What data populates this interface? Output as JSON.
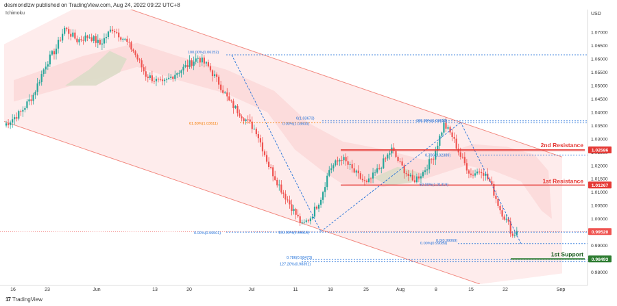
{
  "header": {
    "published_text": "desmondlzw published on TradingView.com, Aug 24, 2022 09:22 UTC+8",
    "indicator_label": "Ichimoku",
    "currency": "USD",
    "brand": "TradingView"
  },
  "colors": {
    "bull": "#26a69a",
    "bear": "#ef5350",
    "resistance": "#e53935",
    "support": "#2e7d32",
    "fib": "#1e6fd9",
    "fib_orange": "#f57c00",
    "channel_fill": "#fde6e6",
    "cloud_red": "#f9d0d0",
    "cloud_green": "#dcdcc8"
  },
  "chart_data": {
    "type": "candlestick",
    "title": "",
    "xlabel": "",
    "ylabel": "USD",
    "ylim": [
      0.9755,
      1.0785
    ],
    "y_ticks": [
      "1.07000",
      "1.06500",
      "1.06000",
      "1.05500",
      "1.05000",
      "1.04500",
      "1.04000",
      "1.03500",
      "1.03000",
      "1.02500",
      "1.02000",
      "1.01500",
      "1.01000",
      "1.00500",
      "1.00000",
      "0.99500",
      "0.99000",
      "0.98500",
      "0.98000"
    ],
    "x_ticks": [
      "16",
      "23",
      "Jun",
      "13",
      "20",
      "Jul",
      "11",
      "18",
      "25",
      "Aug",
      "8",
      "15",
      "22",
      "Sep"
    ],
    "current_price": "0.99520",
    "levels": [
      {
        "label": "2nd Resistance",
        "price": "1.02586",
        "kind": "resistance"
      },
      {
        "label": "1st Resistance",
        "price": "1.01267",
        "kind": "resistance"
      },
      {
        "label": "1st Support",
        "price": "0.98493",
        "kind": "support"
      }
    ],
    "fib_labels": [
      "100.00%(1.06152)",
      "61.80%(1.03611)",
      "0(1.03673)",
      "0.00%(1.03600)",
      "100.00%(1.03618)",
      "0.786(1.02389)",
      "50.00%(1.01319)",
      "0.00%(0.99501)",
      "100.00%(0.99519)",
      "0.0(0.99069)",
      "0.00%(0.99089)",
      "0.786(0.98473)",
      "127.20%(0.98391)"
    ],
    "waypoints": [
      [
        0,
        1.035
      ],
      [
        8,
        1.04
      ],
      [
        14,
        1.0465
      ],
      [
        20,
        1.058
      ],
      [
        25,
        1.064
      ],
      [
        29,
        1.0715
      ],
      [
        35,
        1.067
      ],
      [
        41,
        1.0685
      ],
      [
        46,
        1.0655
      ],
      [
        52,
        1.0715
      ],
      [
        58,
        1.067
      ],
      [
        62,
        1.063
      ],
      [
        68,
        1.054
      ],
      [
        76,
        1.0505
      ],
      [
        82,
        1.0545
      ],
      [
        87,
        1.057
      ],
      [
        93,
        1.0605
      ],
      [
        98,
        1.057
      ],
      [
        103,
        1.051
      ],
      [
        108,
        1.044
      ],
      [
        115,
        1.038
      ],
      [
        121,
        1.033
      ],
      [
        127,
        1.02
      ],
      [
        133,
        1.011
      ],
      [
        139,
        1.003
      ],
      [
        143,
        0.9975
      ],
      [
        147,
        1.0005
      ],
      [
        152,
        1.008
      ],
      [
        156,
        1.0185
      ],
      [
        162,
        1.023
      ],
      [
        168,
        1.0175
      ],
      [
        174,
        1.013
      ],
      [
        180,
        1.019
      ],
      [
        186,
        1.026
      ],
      [
        190,
        1.0205
      ],
      [
        196,
        1.014
      ],
      [
        201,
        1.0175
      ],
      [
        206,
        1.0235
      ],
      [
        211,
        1.0355
      ],
      [
        215,
        1.031
      ],
      [
        219,
        1.0235
      ],
      [
        224,
        1.0165
      ],
      [
        229,
        1.0185
      ],
      [
        233,
        1.014
      ],
      [
        238,
        1.0035
      ],
      [
        242,
        0.998
      ],
      [
        244,
        0.9935
      ],
      [
        246,
        0.9955
      ]
    ]
  }
}
